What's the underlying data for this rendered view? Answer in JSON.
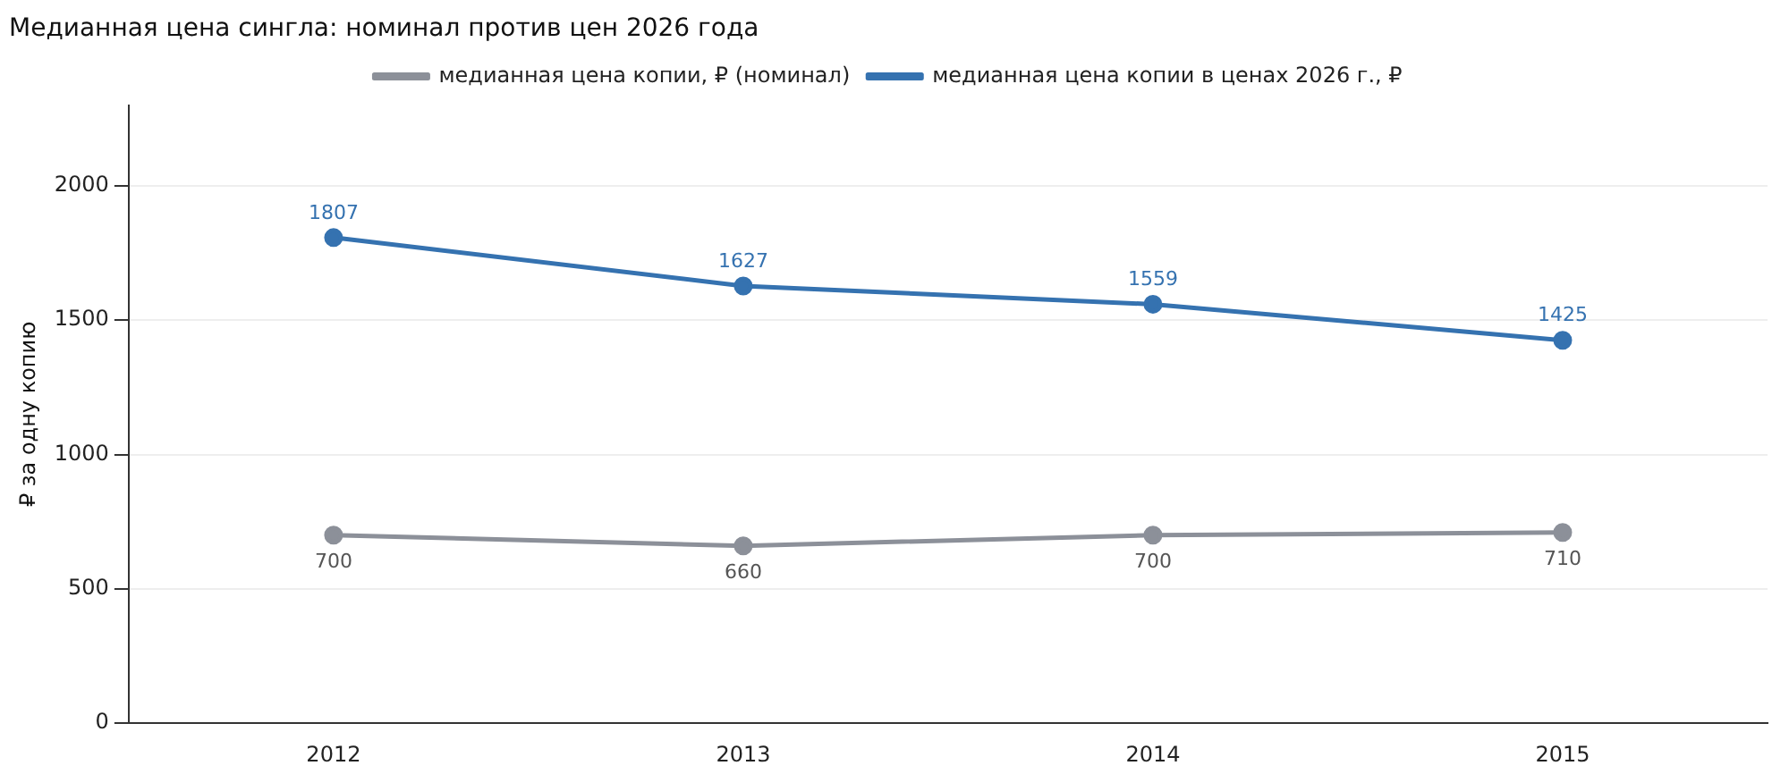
{
  "chart_data": {
    "type": "line",
    "title": "Медианная цена сингла: номинал против цен 2026 года",
    "ylabel": "₽ за одну копию",
    "categories": [
      "2012",
      "2013",
      "2014",
      "2015"
    ],
    "series": [
      {
        "name": "медианная цена копии, ₽ (номинал)",
        "color": "#8c9099",
        "values": [
          700,
          660,
          700,
          710
        ]
      },
      {
        "name": "медианная цена копии в ценах 2026 г., ₽",
        "color": "#3572b0",
        "values": [
          1807,
          1627,
          1559,
          1425
        ]
      }
    ],
    "ylim": [
      0,
      2300
    ],
    "yticks": [
      0,
      500,
      1000,
      1500,
      2000
    ],
    "grid": "y",
    "legend": "top",
    "marker": "circle",
    "line_style": "solid",
    "data_labels": true
  }
}
